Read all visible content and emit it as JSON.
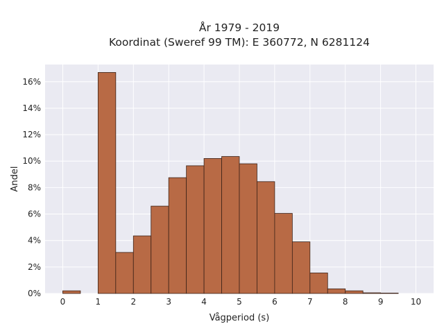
{
  "chart_data": {
    "type": "bar",
    "title": [
      "År 1979 - 2019",
      "Koordinat (Sweref 99 TM): E 360772, N 6281124"
    ],
    "xlabel": "Vågperiod (s)",
    "ylabel": "Andel",
    "bin_width": 0.5,
    "bins_start": [
      0,
      0.5,
      1,
      1.5,
      2,
      2.5,
      3,
      3.5,
      4,
      4.5,
      5,
      5.5,
      6,
      6.5,
      7,
      7.5,
      8,
      8.5,
      9,
      9.5
    ],
    "values": [
      0.2,
      0,
      16.7,
      3.1,
      4.35,
      6.6,
      8.75,
      9.65,
      10.2,
      10.35,
      9.8,
      8.45,
      6.05,
      3.9,
      1.55,
      0.35,
      0.2,
      0.05,
      0.03,
      0
    ],
    "xlim": [
      -0.5,
      10.5
    ],
    "ylim": [
      0,
      17.3
    ],
    "xticks": [
      0,
      1,
      2,
      3,
      4,
      5,
      6,
      7,
      8,
      9,
      10
    ],
    "yticks": [
      0,
      2,
      4,
      6,
      8,
      10,
      12,
      14,
      16
    ],
    "ytick_suffix": "%",
    "grid": true,
    "colors": {
      "bar_fill": "#b86a45",
      "bar_edge": "#3b2218",
      "plot_bg": "#eaeaf2",
      "grid": "#ffffff"
    }
  }
}
